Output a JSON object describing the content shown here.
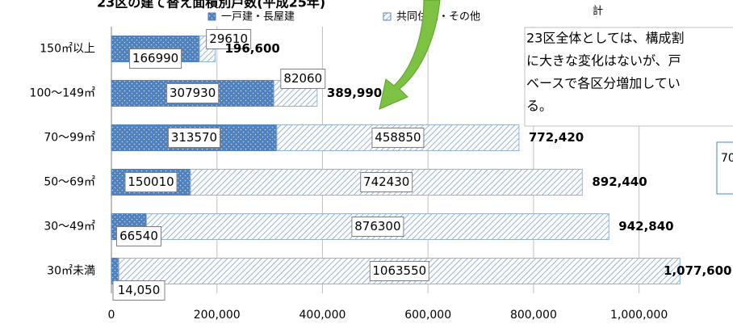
{
  "chart_data": {
    "type": "stacked-barh",
    "title": "23区の建て替え面積別戸数(平成25年)",
    "categories": [
      "150㎡以上",
      "100〜149㎡",
      "70〜99㎡",
      "50〜69㎡",
      "30〜49㎡",
      "30㎡未満"
    ],
    "series": [
      {
        "name": "一戸建・長屋建",
        "color": "#4f81bd",
        "values": [
          166990,
          307930,
          313570,
          150010,
          66540,
          14050
        ],
        "value_labels": [
          "166990",
          "307930",
          "313570",
          "150010",
          "66540",
          "14,050"
        ]
      },
      {
        "name": "共同住宅・その他",
        "color": "#95b3d7",
        "values": [
          29610,
          82060,
          458850,
          742430,
          876300,
          1063550
        ]
      }
    ],
    "totals": {
      "name": "計",
      "values": [
        196600,
        389990,
        772420,
        892440,
        942840,
        1077600
      ],
      "value_labels": [
        "196,600",
        "389,990",
        "772,420",
        "892,440",
        "942,840",
        "1,077,600"
      ]
    },
    "xlim": [
      0,
      1100000
    ],
    "xticks": [
      0,
      {
        "value": 200000,
        "label": "200,000"
      },
      {
        "value": 400000,
        "label": "400,000"
      },
      {
        "value": 600000,
        "label": "600,000"
      },
      {
        "value": 800000,
        "label": "800,000"
      },
      {
        "value": 1000000,
        "label": "1,000,000"
      }
    ],
    "grid": true,
    "annotations": [
      "23区全体としては、構成割",
      "に大きな変化はないが、戸",
      "ベースで各区分増加してい",
      "る。"
    ],
    "side_note": "70"
  }
}
